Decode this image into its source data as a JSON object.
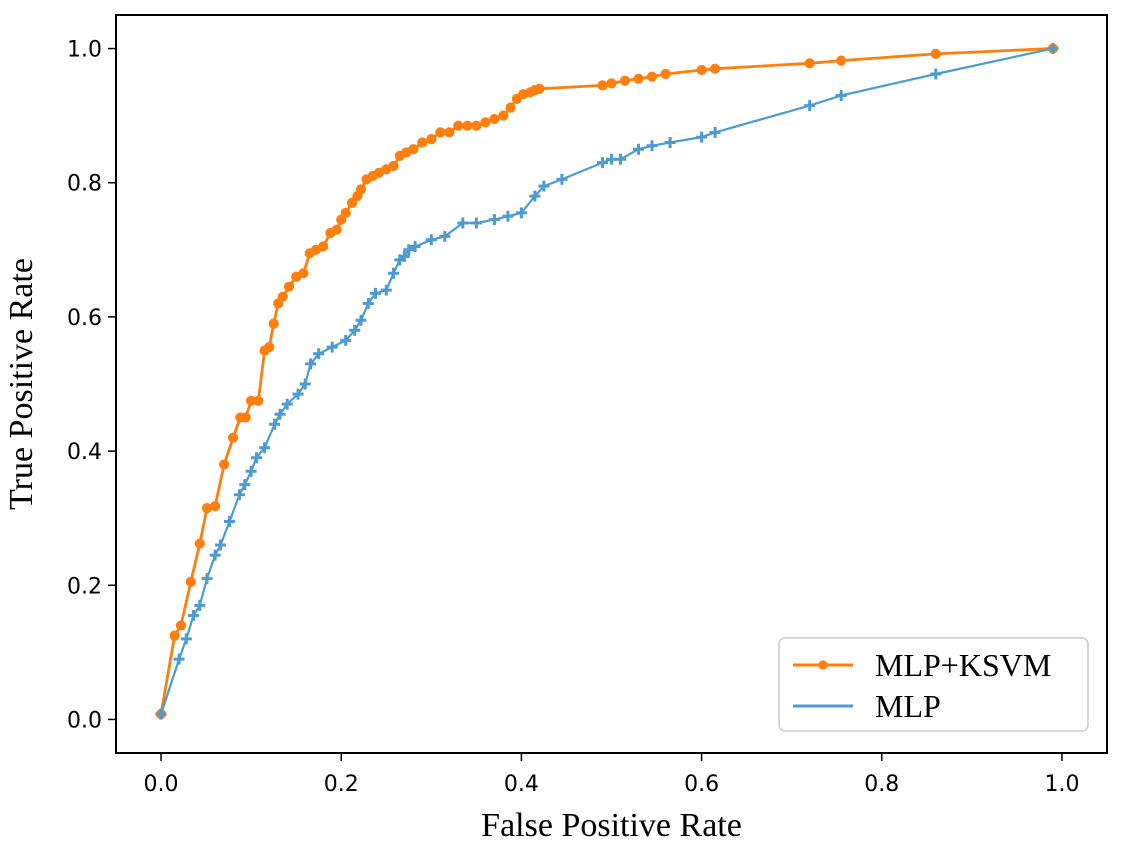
{
  "chart_data": {
    "type": "line",
    "title": "",
    "xlabel": "False Positive Rate",
    "ylabel": "True Positive Rate",
    "xlim": [
      -0.05,
      1.05
    ],
    "ylim": [
      -0.05,
      1.05
    ],
    "xticks": [
      {
        "value": 0.0,
        "label": "0.0"
      },
      {
        "value": 0.2,
        "label": "0.2"
      },
      {
        "value": 0.4,
        "label": "0.4"
      },
      {
        "value": 0.6,
        "label": "0.6"
      },
      {
        "value": 0.8,
        "label": "0.8"
      },
      {
        "value": 1.0,
        "label": "1.0"
      }
    ],
    "yticks": [
      {
        "value": 0.0,
        "label": "0.0"
      },
      {
        "value": 0.2,
        "label": "0.2"
      },
      {
        "value": 0.4,
        "label": "0.4"
      },
      {
        "value": 0.6,
        "label": "0.6"
      },
      {
        "value": 0.8,
        "label": "0.8"
      },
      {
        "value": 1.0,
        "label": "1.0"
      }
    ],
    "grid": false,
    "legend_position": "lower-right",
    "series": [
      {
        "name": "MLP+KSVM",
        "color": "#ff7f0e",
        "marker": "circle",
        "x": [
          0.0,
          0.015,
          0.022,
          0.033,
          0.043,
          0.051,
          0.06,
          0.07,
          0.08,
          0.088,
          0.094,
          0.1,
          0.108,
          0.115,
          0.12,
          0.125,
          0.13,
          0.135,
          0.142,
          0.15,
          0.158,
          0.165,
          0.172,
          0.18,
          0.188,
          0.195,
          0.2,
          0.205,
          0.212,
          0.218,
          0.222,
          0.228,
          0.235,
          0.242,
          0.25,
          0.258,
          0.265,
          0.272,
          0.28,
          0.29,
          0.3,
          0.31,
          0.32,
          0.33,
          0.34,
          0.35,
          0.36,
          0.37,
          0.38,
          0.388,
          0.395,
          0.402,
          0.41,
          0.415,
          0.42,
          0.49,
          0.5,
          0.515,
          0.53,
          0.545,
          0.56,
          0.6,
          0.615,
          0.72,
          0.755,
          0.86,
          0.99
        ],
        "y": [
          0.008,
          0.125,
          0.14,
          0.205,
          0.262,
          0.315,
          0.318,
          0.38,
          0.42,
          0.45,
          0.45,
          0.475,
          0.475,
          0.55,
          0.555,
          0.59,
          0.62,
          0.63,
          0.645,
          0.66,
          0.665,
          0.695,
          0.7,
          0.705,
          0.725,
          0.73,
          0.745,
          0.755,
          0.77,
          0.78,
          0.79,
          0.805,
          0.81,
          0.815,
          0.82,
          0.825,
          0.84,
          0.845,
          0.85,
          0.86,
          0.865,
          0.875,
          0.875,
          0.885,
          0.885,
          0.885,
          0.89,
          0.895,
          0.9,
          0.912,
          0.925,
          0.932,
          0.935,
          0.938,
          0.94,
          0.945,
          0.948,
          0.952,
          0.955,
          0.958,
          0.962,
          0.968,
          0.97,
          0.978,
          0.982,
          0.992,
          1.0
        ]
      },
      {
        "name": "MLP",
        "color": "#4d9bd0",
        "marker": "plus",
        "x": [
          0.0,
          0.02,
          0.028,
          0.036,
          0.043,
          0.051,
          0.06,
          0.066,
          0.076,
          0.087,
          0.093,
          0.1,
          0.106,
          0.115,
          0.126,
          0.132,
          0.14,
          0.152,
          0.16,
          0.166,
          0.175,
          0.19,
          0.205,
          0.215,
          0.222,
          0.23,
          0.238,
          0.25,
          0.258,
          0.265,
          0.27,
          0.275,
          0.282,
          0.3,
          0.315,
          0.335,
          0.35,
          0.37,
          0.385,
          0.4,
          0.415,
          0.425,
          0.445,
          0.49,
          0.5,
          0.51,
          0.53,
          0.545,
          0.565,
          0.6,
          0.615,
          0.72,
          0.755,
          0.86,
          0.99
        ],
        "y": [
          0.008,
          0.09,
          0.12,
          0.155,
          0.17,
          0.21,
          0.245,
          0.26,
          0.295,
          0.335,
          0.35,
          0.37,
          0.39,
          0.405,
          0.44,
          0.455,
          0.47,
          0.485,
          0.5,
          0.53,
          0.545,
          0.555,
          0.565,
          0.58,
          0.595,
          0.62,
          0.635,
          0.64,
          0.665,
          0.685,
          0.69,
          0.7,
          0.705,
          0.715,
          0.72,
          0.74,
          0.74,
          0.745,
          0.75,
          0.755,
          0.78,
          0.795,
          0.805,
          0.83,
          0.835,
          0.835,
          0.85,
          0.855,
          0.86,
          0.868,
          0.875,
          0.915,
          0.93,
          0.962,
          1.0
        ]
      }
    ]
  }
}
